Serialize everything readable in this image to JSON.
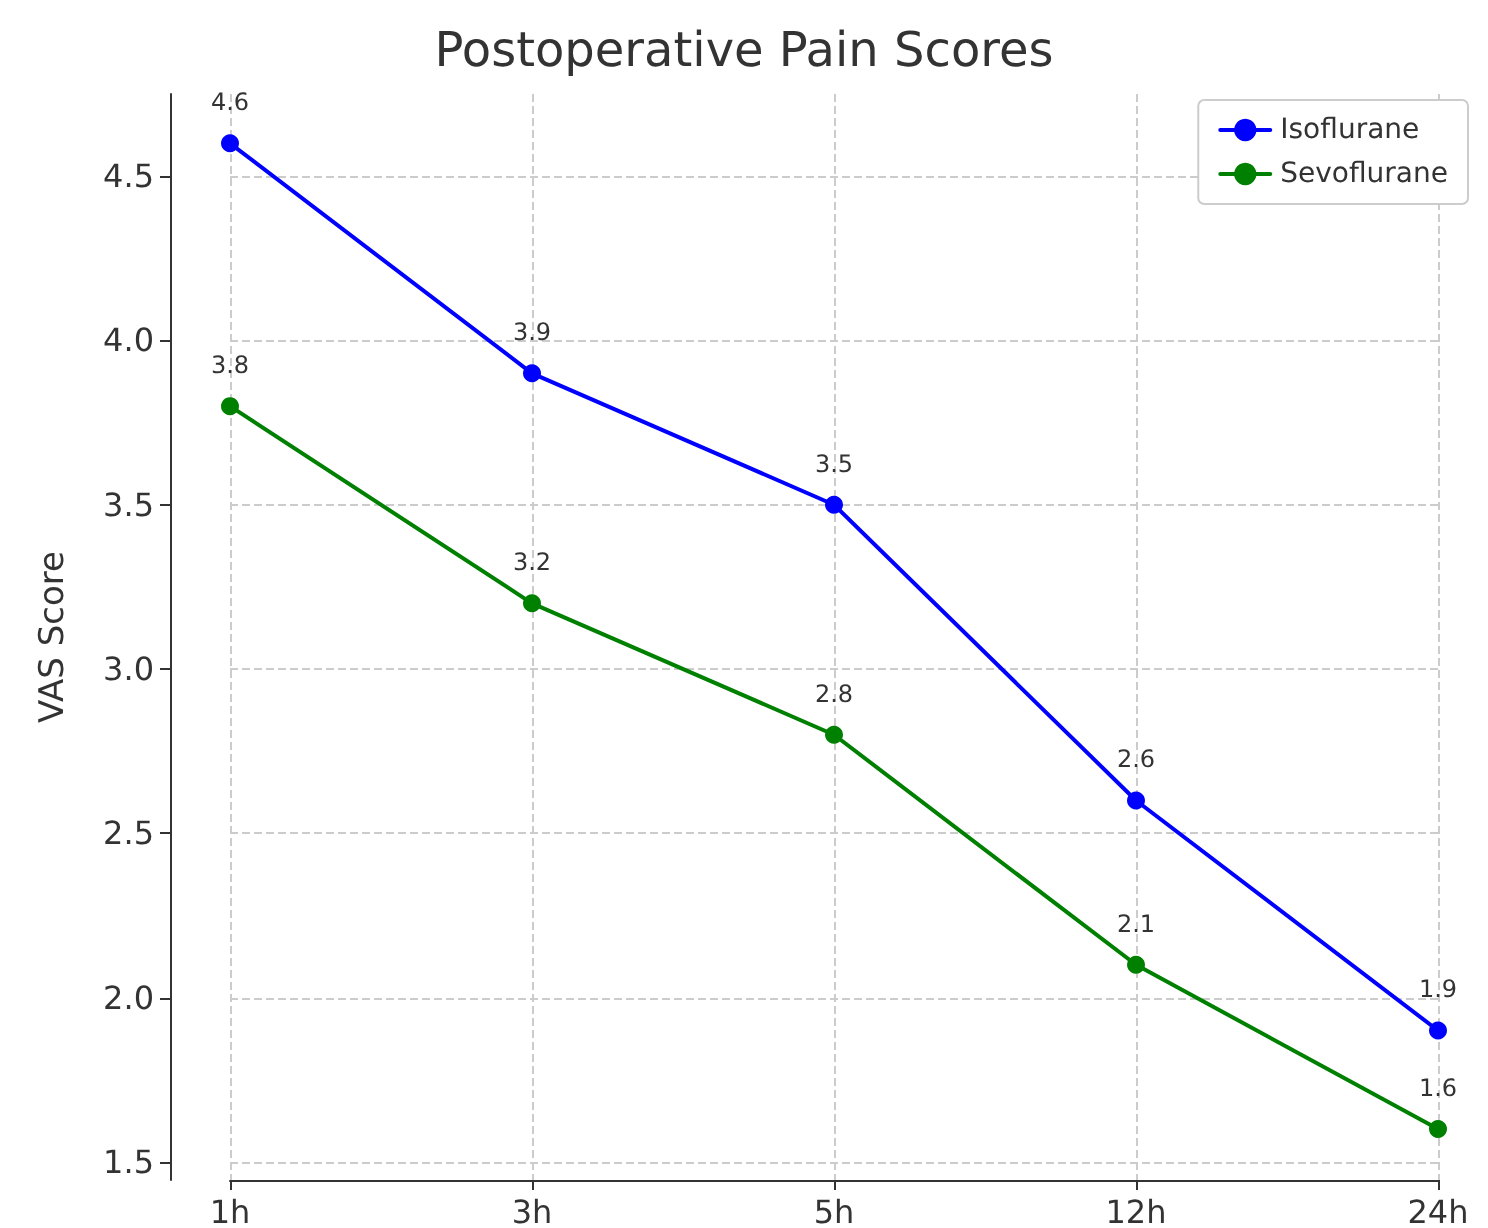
{
  "chart_data": {
    "type": "line",
    "title": "Postoperative Pain Scores",
    "ylabel": "VAS Score",
    "categories": [
      "1h",
      "3h",
      "5h",
      "12h",
      "24h"
    ],
    "series": [
      {
        "name": "Isoflurane",
        "color": "#0000ff",
        "values": [
          4.6,
          3.9,
          3.5,
          2.6,
          1.9
        ]
      },
      {
        "name": "Sevoflurane",
        "color": "#008000",
        "values": [
          3.8,
          3.2,
          2.8,
          2.1,
          1.6
        ]
      }
    ],
    "ylim": [
      1.445,
      4.75
    ],
    "yticks": [
      {
        "value": 1.5,
        "label": "1.5"
      },
      {
        "value": 2.0,
        "label": "2.0"
      },
      {
        "value": 2.5,
        "label": "2.5"
      },
      {
        "value": 3.0,
        "label": "3.0"
      },
      {
        "value": 3.5,
        "label": "3.5"
      },
      {
        "value": 4.0,
        "label": "4.0"
      },
      {
        "value": 4.5,
        "label": "4.5"
      }
    ],
    "grid": true,
    "legend": "top right",
    "marker": "circle",
    "line_style": "solid",
    "data_labels": true
  }
}
